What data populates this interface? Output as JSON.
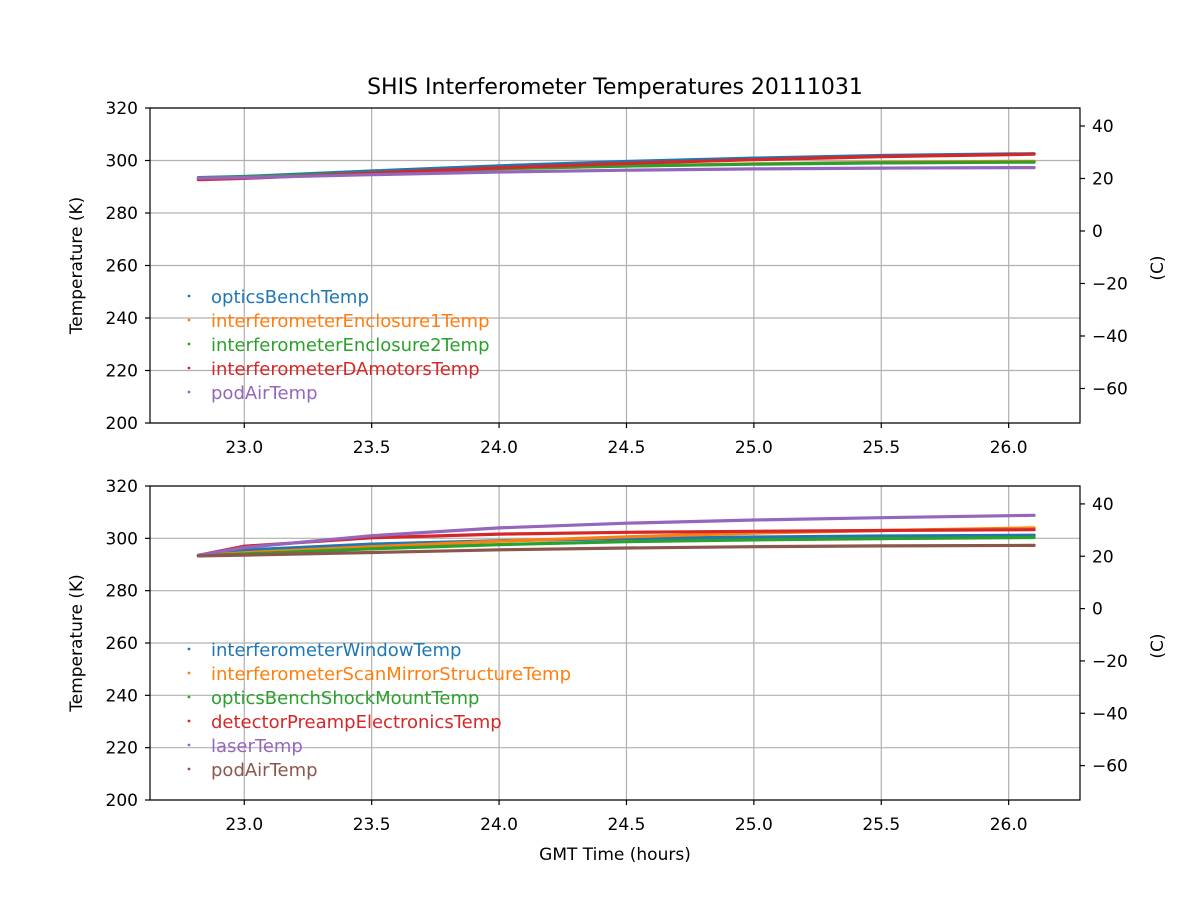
{
  "chart_data": {
    "type": "line",
    "title": "SHIS Interferometer Temperatures 20111031",
    "xlabel": "GMT Time (hours)",
    "panels": [
      {
        "ylabel": "Temperature (K)",
        "ylabel_right": "(C)",
        "xlim": [
          22.63,
          26.28
        ],
        "ylim": [
          200,
          320
        ],
        "xticks": [
          23.0,
          23.5,
          24.0,
          24.5,
          25.0,
          25.5,
          26.0
        ],
        "xtick_labels": [
          "23.0",
          "23.5",
          "24.0",
          "24.5",
          "25.0",
          "25.5",
          "26.0"
        ],
        "yticks": [
          200,
          220,
          240,
          260,
          280,
          300,
          320
        ],
        "ytick_labels": [
          "200",
          "220",
          "240",
          "260",
          "280",
          "300",
          "320"
        ],
        "yticks_right": [
          -60,
          -40,
          -20,
          0,
          20,
          40
        ],
        "ytick_labels_right": [
          "−60",
          "−40",
          "−20",
          "0",
          "20",
          "40"
        ],
        "grid": true,
        "legend": "lower-left",
        "series": [
          {
            "name": "opticsBenchTemp",
            "color": "#1f77b4",
            "x": [
              22.82,
              23.0,
              23.5,
              24.0,
              24.5,
              25.0,
              25.5,
              26.1
            ],
            "y": [
              293.5,
              293.9,
              296.0,
              298.0,
              299.6,
              300.9,
              301.9,
              302.6
            ]
          },
          {
            "name": "interferometerEnclosure1Temp",
            "color": "#ff7f0e",
            "x": [
              22.82,
              23.0,
              23.5,
              24.0,
              24.5,
              25.0,
              25.5,
              26.1
            ],
            "y": [
              293.2,
              293.6,
              295.3,
              296.8,
              297.9,
              298.7,
              299.3,
              299.7
            ]
          },
          {
            "name": "interferometerEnclosure2Temp",
            "color": "#2ca02c",
            "x": [
              22.82,
              23.0,
              23.5,
              24.0,
              24.5,
              25.0,
              25.5,
              26.1
            ],
            "y": [
              293.3,
              293.7,
              295.3,
              296.9,
              297.9,
              298.6,
              299.1,
              299.4
            ]
          },
          {
            "name": "interferometerDAmotorsTemp",
            "color": "#d62728",
            "x": [
              22.82,
              23.0,
              23.5,
              24.0,
              24.5,
              25.0,
              25.5,
              26.1
            ],
            "y": [
              292.7,
              293.2,
              295.2,
              297.2,
              298.9,
              300.3,
              301.5,
              302.4
            ]
          },
          {
            "name": "podAirTemp",
            "color": "#9467bd",
            "x": [
              22.82,
              23.0,
              23.5,
              24.0,
              24.5,
              25.0,
              25.5,
              26.1
            ],
            "y": [
              293.3,
              293.5,
              294.6,
              295.6,
              296.3,
              296.8,
              297.1,
              297.3
            ]
          }
        ]
      },
      {
        "ylabel": "Temperature (K)",
        "ylabel_right": "(C)",
        "xlim": [
          22.63,
          26.28
        ],
        "ylim": [
          200,
          320
        ],
        "xticks": [
          23.0,
          23.5,
          24.0,
          24.5,
          25.0,
          25.5,
          26.0
        ],
        "xtick_labels": [
          "23.0",
          "23.5",
          "24.0",
          "24.5",
          "25.0",
          "25.5",
          "26.0"
        ],
        "yticks": [
          200,
          220,
          240,
          260,
          280,
          300,
          320
        ],
        "ytick_labels": [
          "200",
          "220",
          "240",
          "260",
          "280",
          "300",
          "320"
        ],
        "yticks_right": [
          -60,
          -40,
          -20,
          0,
          20,
          40
        ],
        "ytick_labels_right": [
          "−60",
          "−40",
          "−20",
          "0",
          "20",
          "40"
        ],
        "grid": true,
        "legend": "lower-left",
        "series": [
          {
            "name": "interferometerWindowTemp",
            "color": "#1f77b4",
            "x": [
              22.82,
              23.0,
              23.5,
              24.0,
              24.5,
              25.0,
              25.5,
              26.1
            ],
            "y": [
              293.5,
              295.5,
              297.8,
              299.1,
              299.9,
              300.5,
              300.9,
              301.2
            ]
          },
          {
            "name": "interferometerScanMirrorStructureTemp",
            "color": "#ff7f0e",
            "x": [
              22.82,
              23.0,
              23.5,
              24.0,
              24.5,
              25.0,
              25.5,
              26.1
            ],
            "y": [
              293.3,
              294.5,
              296.8,
              298.9,
              300.6,
              302.0,
              303.0,
              304.0
            ]
          },
          {
            "name": "opticsBenchShockMountTemp",
            "color": "#2ca02c",
            "x": [
              22.82,
              23.0,
              23.5,
              24.0,
              24.5,
              25.0,
              25.5,
              26.1
            ],
            "y": [
              293.3,
              294.0,
              296.0,
              297.6,
              298.7,
              299.4,
              299.9,
              300.3
            ]
          },
          {
            "name": "detectorPreampElectronicsTemp",
            "color": "#d62728",
            "x": [
              22.82,
              23.0,
              23.5,
              24.0,
              24.5,
              25.0,
              25.5,
              26.1
            ],
            "y": [
              293.5,
              297.0,
              300.2,
              301.6,
              302.3,
              302.7,
              303.0,
              303.3
            ]
          },
          {
            "name": "laserTemp",
            "color": "#9467bd",
            "x": [
              22.82,
              23.0,
              23.5,
              24.0,
              24.5,
              25.0,
              25.5,
              26.1
            ],
            "y": [
              293.5,
              296.5,
              301.0,
              304.0,
              305.8,
              307.0,
              307.9,
              308.8
            ]
          },
          {
            "name": "podAirTemp",
            "color": "#8c564b",
            "x": [
              22.82,
              23.0,
              23.5,
              24.0,
              24.5,
              25.0,
              25.5,
              26.1
            ],
            "y": [
              293.3,
              293.6,
              294.6,
              295.6,
              296.3,
              296.8,
              297.1,
              297.3
            ]
          }
        ]
      }
    ]
  }
}
